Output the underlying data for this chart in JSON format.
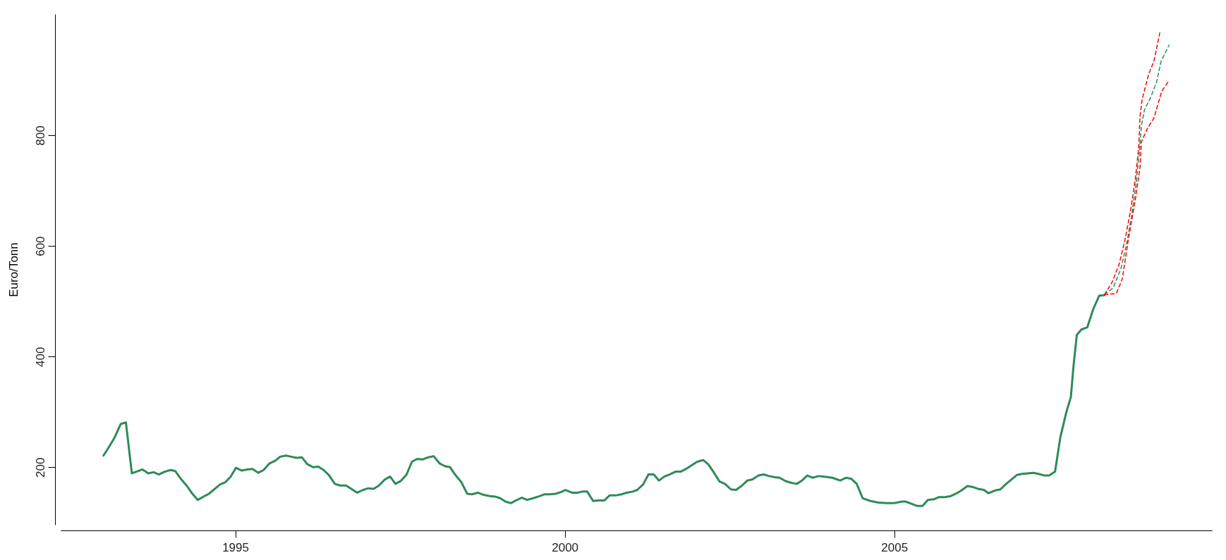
{
  "chart_data": {
    "type": "line",
    "ylabel": "Euro/Tonn",
    "xlim": [
      1992.35,
      2009.82
    ],
    "ylim": [
      96,
      1019
    ],
    "xticks": [
      1995,
      2000,
      2005
    ],
    "yticks": [
      200,
      400,
      600,
      800
    ],
    "grid": false,
    "marker": "none",
    "series": [
      {
        "color": "#2e8b57",
        "line_style": "solid",
        "x": [
          1993.0,
          1993.09,
          1993.17,
          1993.26,
          1993.34,
          1993.43,
          1993.5,
          1993.59,
          1993.68,
          1993.76,
          1993.84,
          1993.93,
          1994.02,
          1994.09,
          1994.18,
          1994.26,
          1994.35,
          1994.43,
          1994.52,
          1994.6,
          1994.69,
          1994.77,
          1994.85,
          1994.93,
          1995.01,
          1995.1,
          1995.18,
          1995.26,
          1995.35,
          1995.43,
          1995.52,
          1995.61,
          1995.68,
          1995.77,
          1995.85,
          1995.93,
          1996.01,
          1996.09,
          1996.18,
          1996.26,
          1996.34,
          1996.42,
          1996.51,
          1996.59,
          1996.68,
          1996.76,
          1996.85,
          1996.94,
          1997.02,
          1997.1,
          1997.18,
          1997.27,
          1997.35,
          1997.43,
          1997.51,
          1997.6,
          1997.68,
          1997.76,
          1997.84,
          1997.93,
          1998.01,
          1998.1,
          1998.18,
          1998.26,
          1998.34,
          1998.43,
          1998.52,
          1998.59,
          1998.68,
          1998.77,
          1998.86,
          1998.94,
          1999.02,
          1999.1,
          1999.18,
          1999.26,
          1999.35,
          1999.43,
          1999.52,
          1999.6,
          1999.69,
          1999.77,
          1999.86,
          1999.94,
          2000.01,
          2000.11,
          2000.19,
          2000.27,
          2000.34,
          2000.43,
          2000.51,
          2000.6,
          2000.68,
          2000.77,
          2000.86,
          2000.94,
          2001.03,
          2001.1,
          2001.19,
          2001.27,
          2001.35,
          2001.43,
          2001.51,
          2001.59,
          2001.68,
          2001.76,
          2001.84,
          2001.93,
          2002.01,
          2002.1,
          2002.18,
          2002.27,
          2002.35,
          2002.43,
          2002.52,
          2002.6,
          2002.69,
          2002.77,
          2002.85,
          2002.94,
          2003.02,
          2003.1,
          2003.19,
          2003.26,
          2003.35,
          2003.43,
          2003.52,
          2003.6,
          2003.68,
          2003.76,
          2003.85,
          2003.94,
          2004.06,
          2004.18,
          2004.27,
          2004.35,
          2004.43,
          2004.52,
          2004.64,
          2004.76,
          2004.89,
          2004.99,
          2005.12,
          2005.17,
          2005.26,
          2005.35,
          2005.43,
          2005.51,
          2005.6,
          2005.68,
          2005.77,
          2005.86,
          2005.95,
          2006.03,
          2006.11,
          2006.2,
          2006.27,
          2006.36,
          2006.43,
          2006.53,
          2006.61,
          2006.69,
          2006.77,
          2006.86,
          2006.94,
          2007.03,
          2007.11,
          2007.19,
          2007.28,
          2007.35,
          2007.44,
          2007.52,
          2007.61,
          2007.68,
          2007.72,
          2007.77,
          2007.84,
          2007.93,
          2008.02,
          2008.11,
          2008.19
        ],
        "values": [
          221,
          238,
          254,
          278,
          281,
          189,
          192,
          196,
          189,
          191,
          187,
          192,
          195,
          193,
          178,
          167,
          152,
          141,
          147,
          152,
          161,
          169,
          173,
          183,
          199,
          194,
          196,
          197,
          190,
          195,
          207,
          212,
          219,
          221,
          219,
          217,
          218,
          206,
          200,
          201,
          195,
          186,
          170,
          167,
          167,
          161,
          154,
          159,
          162,
          161,
          167,
          178,
          183,
          170,
          175,
          187,
          210,
          215,
          214,
          218,
          220,
          207,
          202,
          200,
          186,
          173,
          152,
          151,
          154,
          150,
          148,
          147,
          144,
          138,
          135,
          140,
          145,
          141,
          144,
          147,
          151,
          151,
          152,
          155,
          159,
          154,
          154,
          156,
          156,
          139,
          140,
          140,
          149,
          149,
          151,
          154,
          156,
          159,
          169,
          187,
          187,
          176,
          183,
          187,
          192,
          192,
          197,
          204,
          210,
          213,
          205,
          189,
          174,
          170,
          160,
          159,
          167,
          176,
          178,
          185,
          187,
          184,
          182,
          181,
          175,
          172,
          170,
          176,
          185,
          181,
          184,
          183,
          181,
          176,
          181,
          179,
          170,
          144,
          139,
          136,
          135,
          135,
          138,
          138,
          134,
          130,
          130,
          141,
          142,
          146,
          146,
          148,
          153,
          159,
          166,
          164,
          161,
          159,
          153,
          158,
          160,
          169,
          177,
          186,
          188,
          189,
          190,
          188,
          185,
          185,
          192,
          254,
          299,
          327,
          383,
          439,
          449,
          453,
          486,
          510,
          511
        ]
      },
      {
        "color": "#ff0000",
        "line_style": "dashed",
        "x": [
          2008.19,
          2008.3,
          2008.41,
          2008.5,
          2008.59,
          2008.66,
          2008.71,
          2008.73,
          2008.76,
          2008.86,
          2008.94,
          2009.03
        ],
        "values": [
          512,
          533,
          566,
          610,
          667,
          723,
          779,
          835,
          864,
          910,
          934,
          985
        ]
      },
      {
        "color": "#2e8b57",
        "line_style": "dashed",
        "x": [
          2008.19,
          2008.32,
          2008.44,
          2008.53,
          2008.6,
          2008.67,
          2008.72,
          2008.75,
          2008.8,
          2008.89,
          2008.98,
          2009.05,
          2009.17
        ],
        "values": [
          512,
          524,
          559,
          606,
          653,
          713,
          770,
          817,
          847,
          868,
          896,
          934,
          963
        ]
      },
      {
        "color": "#ff0000",
        "line_style": "dashed",
        "x": [
          2008.19,
          2008.37,
          2008.46,
          2008.55,
          2008.66,
          2008.73,
          2008.75,
          2008.84,
          2008.94,
          2009.06,
          2009.17
        ],
        "values": [
          512,
          514,
          540,
          610,
          685,
          742,
          788,
          812,
          831,
          880,
          899
        ]
      }
    ]
  }
}
